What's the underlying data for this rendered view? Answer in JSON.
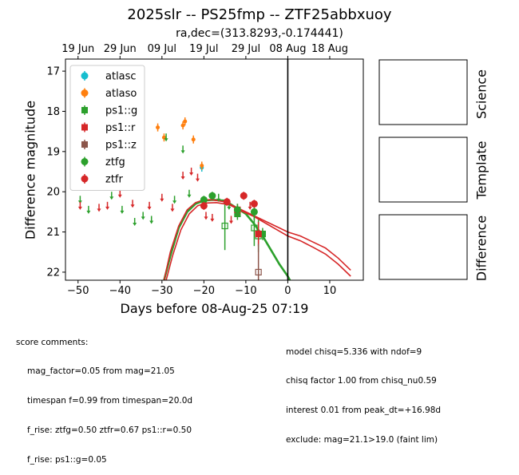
{
  "figure": {
    "title": "2025slr -- PS25fmp -- ZTF25abbxuoy",
    "subtitle": "ra,dec=(313.8293,-0.174441)",
    "side_panels": [
      {
        "label": "Science"
      },
      {
        "label": "Template"
      },
      {
        "label": "Difference"
      }
    ]
  },
  "chart_data": {
    "type": "scatter",
    "xlabel": "Days before 08-Aug-25 07:19",
    "ylabel": "Difference magnitude",
    "xlim": [
      -53,
      18
    ],
    "ylim": [
      22.2,
      16.7
    ],
    "y_inverted": true,
    "grid": false,
    "legend_position": "top-left",
    "x_ticks": [
      -50,
      -40,
      -30,
      -20,
      -10,
      0,
      10
    ],
    "y_ticks": [
      17,
      18,
      19,
      20,
      21,
      22
    ],
    "top_axis_ticks": [
      {
        "x": -50,
        "label": "19 Jun"
      },
      {
        "x": -40,
        "label": "29 Jun"
      },
      {
        "x": -30,
        "label": "09 Jul"
      },
      {
        "x": -20,
        "label": "19 Jul"
      },
      {
        "x": -10,
        "label": "29 Jul"
      },
      {
        "x": 0,
        "label": "08 Aug"
      },
      {
        "x": 10,
        "label": "18 Aug"
      }
    ],
    "vertical_line_x": 0,
    "series": [
      {
        "name": "atlasc",
        "color": "#17becf",
        "marker": "circle",
        "points": [
          {
            "x": -20.5,
            "y": 19.4,
            "err": 0.1
          }
        ]
      },
      {
        "name": "atlaso",
        "color": "#ff7f0e",
        "marker": "circle",
        "points": [
          {
            "x": -31.0,
            "y": 18.4,
            "err": 0.1
          },
          {
            "x": -29.5,
            "y": 18.65,
            "err": 0.1
          },
          {
            "x": -25.0,
            "y": 18.35,
            "err": 0.1
          },
          {
            "x": -24.5,
            "y": 18.25,
            "err": 0.1
          },
          {
            "x": -22.5,
            "y": 18.7,
            "err": 0.1
          },
          {
            "x": -20.5,
            "y": 19.35,
            "err": 0.1
          }
        ]
      },
      {
        "name": "ps1::g",
        "color": "#2ca02c",
        "marker": "square",
        "points": [
          {
            "x": -15.0,
            "y": 20.85,
            "err": 0.6,
            "open": true
          },
          {
            "x": -12.0,
            "y": 20.55,
            "err": 0.15
          },
          {
            "x": -8.0,
            "y": 20.9,
            "err": 0.45,
            "open": true
          },
          {
            "x": -7.0,
            "y": 21.1,
            "err": 0.4,
            "open": true
          },
          {
            "x": -6.0,
            "y": 21.05,
            "err": 0.15
          }
        ]
      },
      {
        "name": "ps1::r",
        "color": "#d62728",
        "marker": "square",
        "points": [
          {
            "x": -12.0,
            "y": 20.45,
            "err": 0.15
          },
          {
            "x": -7.0,
            "y": 21.05,
            "err": 0.3
          }
        ]
      },
      {
        "name": "ps1::z",
        "color": "#8c564b",
        "marker": "square",
        "points": [
          {
            "x": -7.0,
            "y": 22.0,
            "err": 0.7,
            "open": true
          }
        ]
      },
      {
        "name": "ztfg",
        "color": "#2ca02c",
        "marker": "circle",
        "points": [
          {
            "x": -20.0,
            "y": 20.2,
            "err": 0.1
          },
          {
            "x": -18.0,
            "y": 20.1,
            "err": 0.1
          },
          {
            "x": -12.0,
            "y": 20.45,
            "err": 0.15
          },
          {
            "x": -8.0,
            "y": 20.5,
            "err": 0.2
          }
        ],
        "limits": [
          {
            "x": -49.5,
            "y": 20.2
          },
          {
            "x": -47.5,
            "y": 20.45
          },
          {
            "x": -42.0,
            "y": 20.1
          },
          {
            "x": -39.5,
            "y": 20.45
          },
          {
            "x": -36.5,
            "y": 20.75
          },
          {
            "x": -34.5,
            "y": 20.6
          },
          {
            "x": -32.5,
            "y": 20.7
          },
          {
            "x": -29.0,
            "y": 18.65
          },
          {
            "x": -27.0,
            "y": 20.2
          },
          {
            "x": -25.0,
            "y": 18.95
          },
          {
            "x": -23.5,
            "y": 20.05
          },
          {
            "x": -16.5,
            "y": 20.15
          },
          {
            "x": -14.0,
            "y": 20.35
          }
        ]
      },
      {
        "name": "ztfr",
        "color": "#d62728",
        "marker": "circle",
        "points": [
          {
            "x": -20.0,
            "y": 20.35,
            "err": 0.1
          },
          {
            "x": -14.5,
            "y": 20.25,
            "err": 0.1
          },
          {
            "x": -10.5,
            "y": 20.1,
            "err": 0.1
          },
          {
            "x": -8.0,
            "y": 20.3,
            "err": 0.1
          }
        ],
        "limits": [
          {
            "x": -49.5,
            "y": 20.35
          },
          {
            "x": -45.0,
            "y": 20.4
          },
          {
            "x": -43.0,
            "y": 20.35
          },
          {
            "x": -40.0,
            "y": 20.05
          },
          {
            "x": -37.0,
            "y": 20.3
          },
          {
            "x": -33.0,
            "y": 20.35
          },
          {
            "x": -30.0,
            "y": 20.15
          },
          {
            "x": -27.5,
            "y": 20.4
          },
          {
            "x": -25.0,
            "y": 19.6
          },
          {
            "x": -23.0,
            "y": 19.5
          },
          {
            "x": -21.5,
            "y": 19.65
          },
          {
            "x": -19.5,
            "y": 20.6
          },
          {
            "x": -18.0,
            "y": 20.65
          },
          {
            "x": -13.5,
            "y": 20.7
          },
          {
            "x": -9.0,
            "y": 20.35
          }
        ]
      }
    ],
    "models": [
      {
        "color": "#2ca02c",
        "points": [
          [
            -29.5,
            22.2
          ],
          [
            -28,
            21.6
          ],
          [
            -26,
            20.9
          ],
          [
            -24,
            20.5
          ],
          [
            -22,
            20.3
          ],
          [
            -20,
            20.22
          ],
          [
            -18,
            20.2
          ],
          [
            -15,
            20.22
          ],
          [
            -13,
            20.35
          ],
          [
            -10,
            20.55
          ],
          [
            -8,
            20.8
          ],
          [
            -6,
            21.1
          ],
          [
            -4,
            21.45
          ],
          [
            -2,
            21.8
          ],
          [
            0,
            22.1
          ],
          [
            0.5,
            22.2
          ]
        ]
      },
      {
        "color": "#d62728",
        "points": [
          [
            -29.5,
            22.2
          ],
          [
            -28,
            21.5
          ],
          [
            -26,
            20.85
          ],
          [
            -24,
            20.45
          ],
          [
            -22,
            20.27
          ],
          [
            -20,
            20.2
          ],
          [
            -18,
            20.2
          ],
          [
            -15,
            20.25
          ],
          [
            -12,
            20.4
          ],
          [
            -10,
            20.5
          ],
          [
            -8,
            20.6
          ],
          [
            -5,
            20.75
          ],
          [
            -2,
            20.9
          ],
          [
            0,
            21.0
          ],
          [
            3,
            21.1
          ],
          [
            6,
            21.25
          ],
          [
            9,
            21.4
          ],
          [
            12,
            21.65
          ],
          [
            15,
            21.95
          ]
        ]
      },
      {
        "color": "#d62728",
        "points": [
          [
            -29.0,
            22.2
          ],
          [
            -27.5,
            21.6
          ],
          [
            -25.5,
            20.95
          ],
          [
            -23.5,
            20.55
          ],
          [
            -21.5,
            20.35
          ],
          [
            -19.5,
            20.28
          ],
          [
            -17,
            20.27
          ],
          [
            -14,
            20.32
          ],
          [
            -11,
            20.48
          ],
          [
            -8,
            20.62
          ],
          [
            -5,
            20.8
          ],
          [
            -2,
            20.98
          ],
          [
            0,
            21.1
          ],
          [
            3,
            21.22
          ],
          [
            6,
            21.38
          ],
          [
            9,
            21.55
          ],
          [
            12,
            21.8
          ],
          [
            15,
            22.1
          ]
        ]
      }
    ]
  },
  "score_comments": {
    "header": "score comments:",
    "left": [
      "mag_factor=0.05 from mag=21.05",
      "timespan f=0.99 from timespan=20.0d",
      "f_rise: ztfg=0.50 ztfr=0.67 ps1::r=0.50",
      "f_rise: ps1::g=0.05"
    ],
    "right": [
      "model chisq=5.336 with ndof=9",
      "chisq factor 1.00 from chisq_nu0.59",
      "interest 0.01 from peak_dt=+16.98d",
      "exclude: mag=21.1>19.0 (faint lim)"
    ]
  }
}
